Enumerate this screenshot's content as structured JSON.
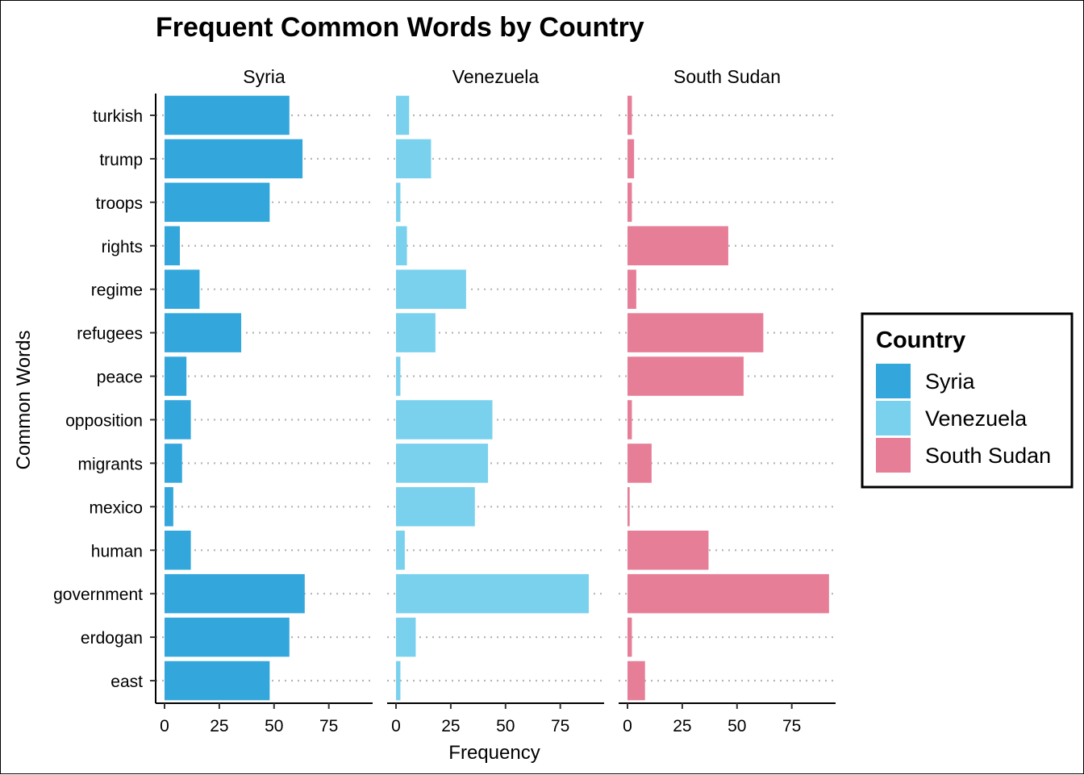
{
  "chart_data": {
    "type": "bar",
    "title": "Frequent Common Words by Country",
    "xlabel": "Frequency",
    "ylabel": "Common Words",
    "xlim": [
      0,
      95
    ],
    "xticks": [
      "0",
      "25",
      "50",
      "75"
    ],
    "categories": [
      "turkish",
      "trump",
      "troops",
      "rights",
      "regime",
      "refugees",
      "peace",
      "opposition",
      "migrants",
      "mexico",
      "human",
      "government",
      "erdogan",
      "east"
    ],
    "series": [
      {
        "name": "Syria",
        "color": "#33a7dc",
        "values": [
          57,
          63,
          48,
          7,
          16,
          35,
          10,
          12,
          8,
          4,
          12,
          64,
          57,
          48
        ]
      },
      {
        "name": "Venezuela",
        "color": "#7ad1ee",
        "values": [
          6,
          16,
          2,
          5,
          32,
          18,
          2,
          44,
          42,
          36,
          4,
          88,
          9,
          2
        ]
      },
      {
        "name": "South Sudan",
        "color": "#e77e97",
        "values": [
          2,
          3,
          2,
          46,
          4,
          62,
          53,
          2,
          11,
          1,
          37,
          92,
          2,
          8
        ]
      }
    ],
    "legend": {
      "title": "Country",
      "position": "right"
    },
    "grid": "dotted-horizontal"
  }
}
